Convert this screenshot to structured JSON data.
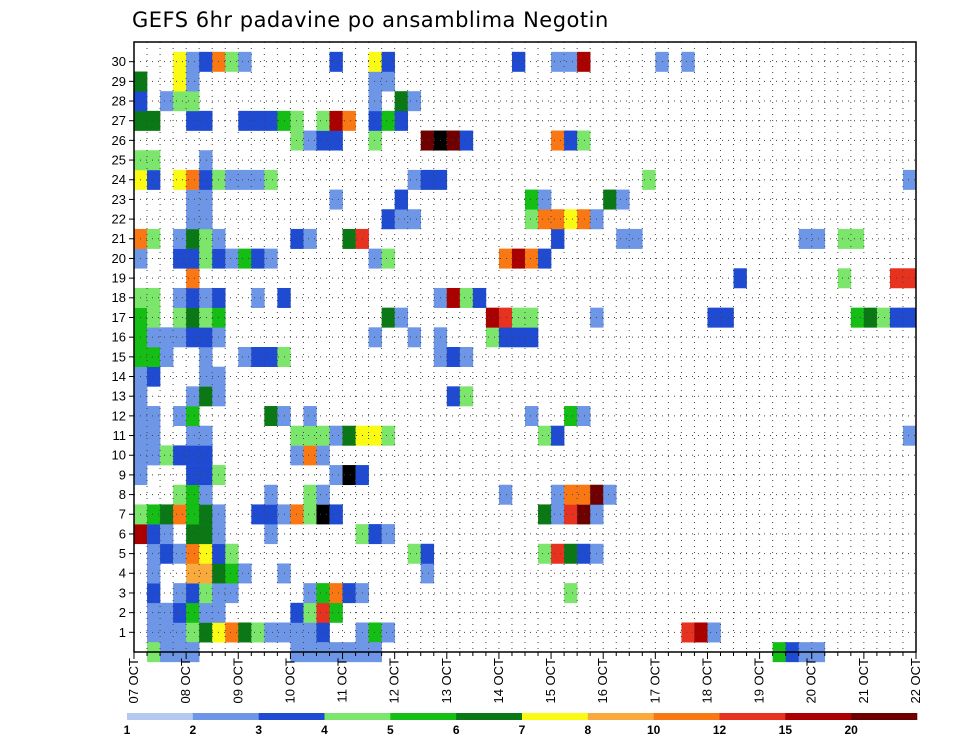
{
  "chart_data": {
    "type": "heatmap",
    "title": "GEFS 6hr padavine po ansamblima Negotin",
    "y_ticks": [
      "1",
      "2",
      "3",
      "4",
      "5",
      "6",
      "7",
      "8",
      "9",
      "10",
      "11",
      "12",
      "13",
      "14",
      "15",
      "16",
      "17",
      "18",
      "19",
      "20",
      "21",
      "22",
      "23",
      "24",
      "25",
      "26",
      "27",
      "28",
      "29",
      "30"
    ],
    "x_ticks": [
      "07 OCT",
      "08 OCT",
      "09 OCT",
      "10 OCT",
      "11 OCT",
      "12 OCT",
      "13 OCT",
      "14 OCT",
      "15 OCT",
      "16 OCT",
      "17 OCT",
      "18 OCT",
      "19 OCT",
      "20 OCT",
      "21 OCT",
      "22 OCT"
    ],
    "xlim": [
      0,
      60
    ],
    "ylim": [
      0,
      31
    ],
    "grid": true,
    "colorbar": {
      "labels": [
        "1",
        "2",
        "3",
        "4",
        "5",
        "6",
        "7",
        "8",
        "10",
        "12",
        "15",
        "20"
      ],
      "colors": [
        "#b4c8f0",
        "#6e96e6",
        "#1e4bd2",
        "#7ce66c",
        "#14be14",
        "#0a7814",
        "#fafa14",
        "#faaa3c",
        "#fa7814",
        "#e6321e",
        "#aa0000",
        "#6e0000"
      ]
    },
    "cells": [
      [
        1,
        1,
        1
      ],
      [
        2,
        1,
        1
      ],
      [
        3,
        1,
        1
      ],
      [
        4,
        1,
        3
      ],
      [
        5,
        1,
        5
      ],
      [
        6,
        1,
        6
      ],
      [
        7,
        1,
        8
      ],
      [
        8,
        1,
        5
      ],
      [
        9,
        1,
        3
      ],
      [
        10,
        1,
        1
      ],
      [
        11,
        1,
        1
      ],
      [
        12,
        1,
        1
      ],
      [
        13,
        1,
        1
      ],
      [
        14,
        1,
        2
      ],
      [
        17,
        1,
        1
      ],
      [
        18,
        1,
        4
      ],
      [
        19,
        1,
        1
      ],
      [
        42,
        1,
        9
      ],
      [
        43,
        1,
        10
      ],
      [
        44,
        1,
        1
      ],
      [
        1,
        2,
        1
      ],
      [
        2,
        2,
        1
      ],
      [
        3,
        2,
        2
      ],
      [
        4,
        2,
        4
      ],
      [
        5,
        2,
        1
      ],
      [
        6,
        2,
        1
      ],
      [
        12,
        2,
        2
      ],
      [
        13,
        2,
        3
      ],
      [
        14,
        2,
        9
      ],
      [
        15,
        2,
        4
      ],
      [
        1,
        3,
        2
      ],
      [
        3,
        3,
        1
      ],
      [
        4,
        3,
        2
      ],
      [
        5,
        3,
        3
      ],
      [
        6,
        3,
        1
      ],
      [
        7,
        3,
        1
      ],
      [
        13,
        3,
        1
      ],
      [
        14,
        3,
        4
      ],
      [
        15,
        3,
        8
      ],
      [
        16,
        3,
        2
      ],
      [
        17,
        3,
        1
      ],
      [
        33,
        3,
        3
      ],
      [
        1,
        4,
        1
      ],
      [
        4,
        4,
        7
      ],
      [
        5,
        4,
        7
      ],
      [
        6,
        4,
        5
      ],
      [
        7,
        4,
        4
      ],
      [
        8,
        4,
        1
      ],
      [
        11,
        4,
        1
      ],
      [
        22,
        4,
        1
      ],
      [
        1,
        5,
        1
      ],
      [
        2,
        5,
        2
      ],
      [
        3,
        5,
        1
      ],
      [
        4,
        5,
        8
      ],
      [
        5,
        5,
        6
      ],
      [
        6,
        5,
        2
      ],
      [
        7,
        5,
        3
      ],
      [
        21,
        5,
        3
      ],
      [
        22,
        5,
        2
      ],
      [
        31,
        5,
        3
      ],
      [
        32,
        5,
        9
      ],
      [
        33,
        5,
        5
      ],
      [
        34,
        5,
        2
      ],
      [
        35,
        5,
        1
      ],
      [
        0,
        6,
        10
      ],
      [
        1,
        6,
        2
      ],
      [
        2,
        6,
        1
      ],
      [
        4,
        6,
        5
      ],
      [
        5,
        6,
        5
      ],
      [
        6,
        6,
        1
      ],
      [
        10,
        6,
        1
      ],
      [
        17,
        6,
        3
      ],
      [
        18,
        6,
        2
      ],
      [
        19,
        6,
        1
      ],
      [
        0,
        7,
        3
      ],
      [
        1,
        7,
        4
      ],
      [
        2,
        7,
        5
      ],
      [
        3,
        7,
        8
      ],
      [
        4,
        7,
        4
      ],
      [
        5,
        7,
        5
      ],
      [
        6,
        7,
        1
      ],
      [
        9,
        7,
        2
      ],
      [
        10,
        7,
        2
      ],
      [
        11,
        7,
        1
      ],
      [
        12,
        7,
        8
      ],
      [
        13,
        7,
        3
      ],
      [
        14,
        7,
        12
      ],
      [
        15,
        7,
        2
      ],
      [
        31,
        7,
        5
      ],
      [
        32,
        7,
        1
      ],
      [
        33,
        7,
        9
      ],
      [
        34,
        7,
        11
      ],
      [
        35,
        7,
        1
      ],
      [
        3,
        8,
        3
      ],
      [
        4,
        8,
        4
      ],
      [
        5,
        8,
        1
      ],
      [
        10,
        8,
        1
      ],
      [
        13,
        8,
        3
      ],
      [
        14,
        8,
        1
      ],
      [
        28,
        8,
        1
      ],
      [
        32,
        8,
        1
      ],
      [
        33,
        8,
        8
      ],
      [
        34,
        8,
        8
      ],
      [
        35,
        8,
        11
      ],
      [
        36,
        8,
        1
      ],
      [
        0,
        9,
        1
      ],
      [
        4,
        9,
        2
      ],
      [
        5,
        9,
        2
      ],
      [
        6,
        9,
        3
      ],
      [
        15,
        9,
        1
      ],
      [
        16,
        9,
        12
      ],
      [
        17,
        9,
        2
      ],
      [
        0,
        10,
        1
      ],
      [
        1,
        10,
        1
      ],
      [
        2,
        10,
        3
      ],
      [
        3,
        10,
        2
      ],
      [
        4,
        10,
        2
      ],
      [
        5,
        10,
        2
      ],
      [
        12,
        10,
        1
      ],
      [
        13,
        10,
        8
      ],
      [
        14,
        10,
        1
      ],
      [
        0,
        11,
        1
      ],
      [
        1,
        11,
        1
      ],
      [
        4,
        11,
        1
      ],
      [
        5,
        11,
        1
      ],
      [
        12,
        11,
        3
      ],
      [
        13,
        11,
        3
      ],
      [
        14,
        11,
        3
      ],
      [
        15,
        11,
        1
      ],
      [
        16,
        11,
        5
      ],
      [
        17,
        11,
        6
      ],
      [
        18,
        11,
        6
      ],
      [
        19,
        11,
        3
      ],
      [
        31,
        11,
        3
      ],
      [
        32,
        11,
        2
      ],
      [
        59,
        11,
        1
      ],
      [
        0,
        12,
        1
      ],
      [
        1,
        12,
        1
      ],
      [
        3,
        12,
        1
      ],
      [
        4,
        12,
        4
      ],
      [
        10,
        12,
        5
      ],
      [
        11,
        12,
        1
      ],
      [
        13,
        12,
        1
      ],
      [
        30,
        12,
        1
      ],
      [
        33,
        12,
        4
      ],
      [
        34,
        12,
        1
      ],
      [
        0,
        13,
        1
      ],
      [
        4,
        13,
        1
      ],
      [
        5,
        13,
        5
      ],
      [
        6,
        13,
        1
      ],
      [
        24,
        13,
        2
      ],
      [
        25,
        13,
        3
      ],
      [
        0,
        14,
        1
      ],
      [
        1,
        14,
        2
      ],
      [
        5,
        14,
        1
      ],
      [
        6,
        14,
        1
      ],
      [
        0,
        15,
        4
      ],
      [
        1,
        15,
        4
      ],
      [
        2,
        15,
        1
      ],
      [
        5,
        15,
        1
      ],
      [
        8,
        15,
        1
      ],
      [
        9,
        15,
        2
      ],
      [
        10,
        15,
        2
      ],
      [
        11,
        15,
        3
      ],
      [
        23,
        15,
        1
      ],
      [
        24,
        15,
        2
      ],
      [
        25,
        15,
        1
      ],
      [
        0,
        16,
        4
      ],
      [
        1,
        16,
        1
      ],
      [
        2,
        16,
        1
      ],
      [
        3,
        16,
        1
      ],
      [
        4,
        16,
        2
      ],
      [
        5,
        16,
        2
      ],
      [
        6,
        16,
        1
      ],
      [
        18,
        16,
        1
      ],
      [
        21,
        16,
        1
      ],
      [
        23,
        16,
        1
      ],
      [
        27,
        16,
        3
      ],
      [
        28,
        16,
        2
      ],
      [
        29,
        16,
        2
      ],
      [
        30,
        16,
        2
      ],
      [
        0,
        17,
        4
      ],
      [
        1,
        17,
        3
      ],
      [
        3,
        17,
        3
      ],
      [
        4,
        17,
        5
      ],
      [
        5,
        17,
        3
      ],
      [
        6,
        17,
        4
      ],
      [
        19,
        17,
        5
      ],
      [
        20,
        17,
        1
      ],
      [
        27,
        17,
        10
      ],
      [
        28,
        17,
        9
      ],
      [
        29,
        17,
        3
      ],
      [
        30,
        17,
        3
      ],
      [
        35,
        17,
        1
      ],
      [
        44,
        17,
        2
      ],
      [
        45,
        17,
        2
      ],
      [
        55,
        17,
        4
      ],
      [
        56,
        17,
        5
      ],
      [
        57,
        17,
        3
      ],
      [
        58,
        17,
        2
      ],
      [
        59,
        17,
        2
      ],
      [
        0,
        18,
        3
      ],
      [
        1,
        18,
        3
      ],
      [
        3,
        18,
        1
      ],
      [
        4,
        18,
        2
      ],
      [
        5,
        18,
        1
      ],
      [
        6,
        18,
        2
      ],
      [
        9,
        18,
        1
      ],
      [
        11,
        18,
        2
      ],
      [
        23,
        18,
        1
      ],
      [
        24,
        18,
        10
      ],
      [
        25,
        18,
        3
      ],
      [
        26,
        18,
        2
      ],
      [
        4,
        19,
        8
      ],
      [
        46,
        19,
        2
      ],
      [
        54,
        19,
        3
      ],
      [
        58,
        19,
        9
      ],
      [
        59,
        19,
        9
      ],
      [
        0,
        20,
        1
      ],
      [
        3,
        20,
        2
      ],
      [
        4,
        20,
        2
      ],
      [
        5,
        20,
        3
      ],
      [
        6,
        20,
        2
      ],
      [
        7,
        20,
        1
      ],
      [
        8,
        20,
        4
      ],
      [
        9,
        20,
        2
      ],
      [
        10,
        20,
        1
      ],
      [
        18,
        20,
        1
      ],
      [
        19,
        20,
        3
      ],
      [
        28,
        20,
        8
      ],
      [
        29,
        20,
        10
      ],
      [
        30,
        20,
        8
      ],
      [
        31,
        20,
        2
      ],
      [
        0,
        21,
        8
      ],
      [
        1,
        21,
        3
      ],
      [
        3,
        21,
        1
      ],
      [
        4,
        21,
        5
      ],
      [
        5,
        21,
        3
      ],
      [
        6,
        21,
        1
      ],
      [
        12,
        21,
        2
      ],
      [
        13,
        21,
        1
      ],
      [
        16,
        21,
        5
      ],
      [
        17,
        21,
        9
      ],
      [
        32,
        21,
        2
      ],
      [
        37,
        21,
        1
      ],
      [
        38,
        21,
        1
      ],
      [
        51,
        21,
        1
      ],
      [
        52,
        21,
        1
      ],
      [
        54,
        21,
        3
      ],
      [
        55,
        21,
        3
      ],
      [
        4,
        22,
        1
      ],
      [
        5,
        22,
        1
      ],
      [
        19,
        22,
        2
      ],
      [
        20,
        22,
        1
      ],
      [
        21,
        22,
        1
      ],
      [
        30,
        22,
        3
      ],
      [
        31,
        22,
        8
      ],
      [
        32,
        22,
        8
      ],
      [
        33,
        22,
        6
      ],
      [
        34,
        22,
        8
      ],
      [
        35,
        22,
        1
      ],
      [
        4,
        23,
        1
      ],
      [
        5,
        23,
        1
      ],
      [
        15,
        23,
        1
      ],
      [
        20,
        23,
        2
      ],
      [
        30,
        23,
        4
      ],
      [
        31,
        23,
        1
      ],
      [
        36,
        23,
        5
      ],
      [
        37,
        23,
        1
      ],
      [
        0,
        24,
        6
      ],
      [
        1,
        24,
        2
      ],
      [
        3,
        24,
        6
      ],
      [
        4,
        24,
        8
      ],
      [
        5,
        24,
        2
      ],
      [
        6,
        24,
        3
      ],
      [
        7,
        24,
        1
      ],
      [
        8,
        24,
        1
      ],
      [
        9,
        24,
        1
      ],
      [
        10,
        24,
        3
      ],
      [
        21,
        24,
        1
      ],
      [
        22,
        24,
        2
      ],
      [
        23,
        24,
        2
      ],
      [
        39,
        24,
        3
      ],
      [
        59,
        24,
        1
      ],
      [
        0,
        25,
        3
      ],
      [
        1,
        25,
        3
      ],
      [
        5,
        25,
        1
      ],
      [
        12,
        26,
        3
      ],
      [
        13,
        26,
        1
      ],
      [
        14,
        26,
        2
      ],
      [
        15,
        26,
        2
      ],
      [
        18,
        26,
        3
      ],
      [
        22,
        26,
        11
      ],
      [
        23,
        26,
        12
      ],
      [
        24,
        26,
        11
      ],
      [
        25,
        26,
        2
      ],
      [
        32,
        26,
        8
      ],
      [
        33,
        26,
        2
      ],
      [
        34,
        26,
        3
      ],
      [
        0,
        27,
        5
      ],
      [
        1,
        27,
        5
      ],
      [
        4,
        27,
        2
      ],
      [
        5,
        27,
        2
      ],
      [
        8,
        27,
        2
      ],
      [
        9,
        27,
        2
      ],
      [
        10,
        27,
        2
      ],
      [
        11,
        27,
        4
      ],
      [
        12,
        27,
        3
      ],
      [
        14,
        27,
        3
      ],
      [
        15,
        27,
        10
      ],
      [
        16,
        27,
        8
      ],
      [
        18,
        27,
        2
      ],
      [
        19,
        27,
        4
      ],
      [
        20,
        27,
        2
      ],
      [
        0,
        28,
        2
      ],
      [
        2,
        28,
        1
      ],
      [
        3,
        28,
        3
      ],
      [
        4,
        28,
        3
      ],
      [
        18,
        28,
        1
      ],
      [
        20,
        28,
        5
      ],
      [
        21,
        28,
        1
      ],
      [
        0,
        29,
        5
      ],
      [
        3,
        29,
        6
      ],
      [
        4,
        29,
        1
      ],
      [
        18,
        29,
        1
      ],
      [
        19,
        29,
        1
      ],
      [
        3,
        30,
        6
      ],
      [
        4,
        30,
        1
      ],
      [
        5,
        30,
        2
      ],
      [
        6,
        30,
        8
      ],
      [
        7,
        30,
        3
      ],
      [
        8,
        30,
        1
      ],
      [
        15,
        30,
        2
      ],
      [
        18,
        30,
        6
      ],
      [
        19,
        30,
        2
      ],
      [
        29,
        30,
        2
      ],
      [
        32,
        30,
        1
      ],
      [
        33,
        30,
        1
      ],
      [
        34,
        30,
        10
      ],
      [
        40,
        30,
        1
      ],
      [
        42,
        30,
        1
      ],
      [
        1,
        0,
        3
      ],
      [
        2,
        0,
        1
      ],
      [
        3,
        0,
        1
      ],
      [
        4,
        0,
        1
      ],
      [
        12,
        0,
        1
      ],
      [
        13,
        0,
        1
      ],
      [
        14,
        0,
        1
      ],
      [
        15,
        0,
        1
      ],
      [
        16,
        0,
        1
      ],
      [
        17,
        0,
        1
      ],
      [
        18,
        0,
        1
      ],
      [
        49,
        0,
        4
      ],
      [
        50,
        0,
        2
      ],
      [
        51,
        0,
        1
      ],
      [
        52,
        0,
        1
      ]
    ]
  }
}
